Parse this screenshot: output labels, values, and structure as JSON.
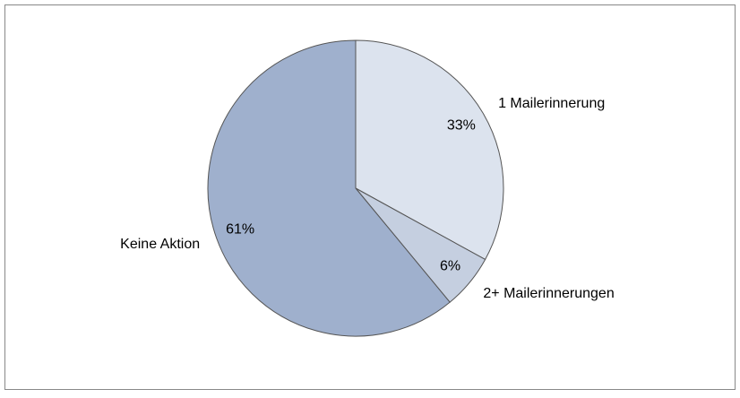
{
  "chart_data": {
    "type": "pie",
    "categories": [
      "1 Mailerinnerung",
      "2+ Mailerinnerungen",
      "Keine Aktion"
    ],
    "values": [
      33,
      6,
      61
    ],
    "value_labels": [
      "33%",
      "6%",
      "61%"
    ],
    "colors": [
      "#dce3ee",
      "#c5cfe0",
      "#9fb0cd"
    ]
  }
}
